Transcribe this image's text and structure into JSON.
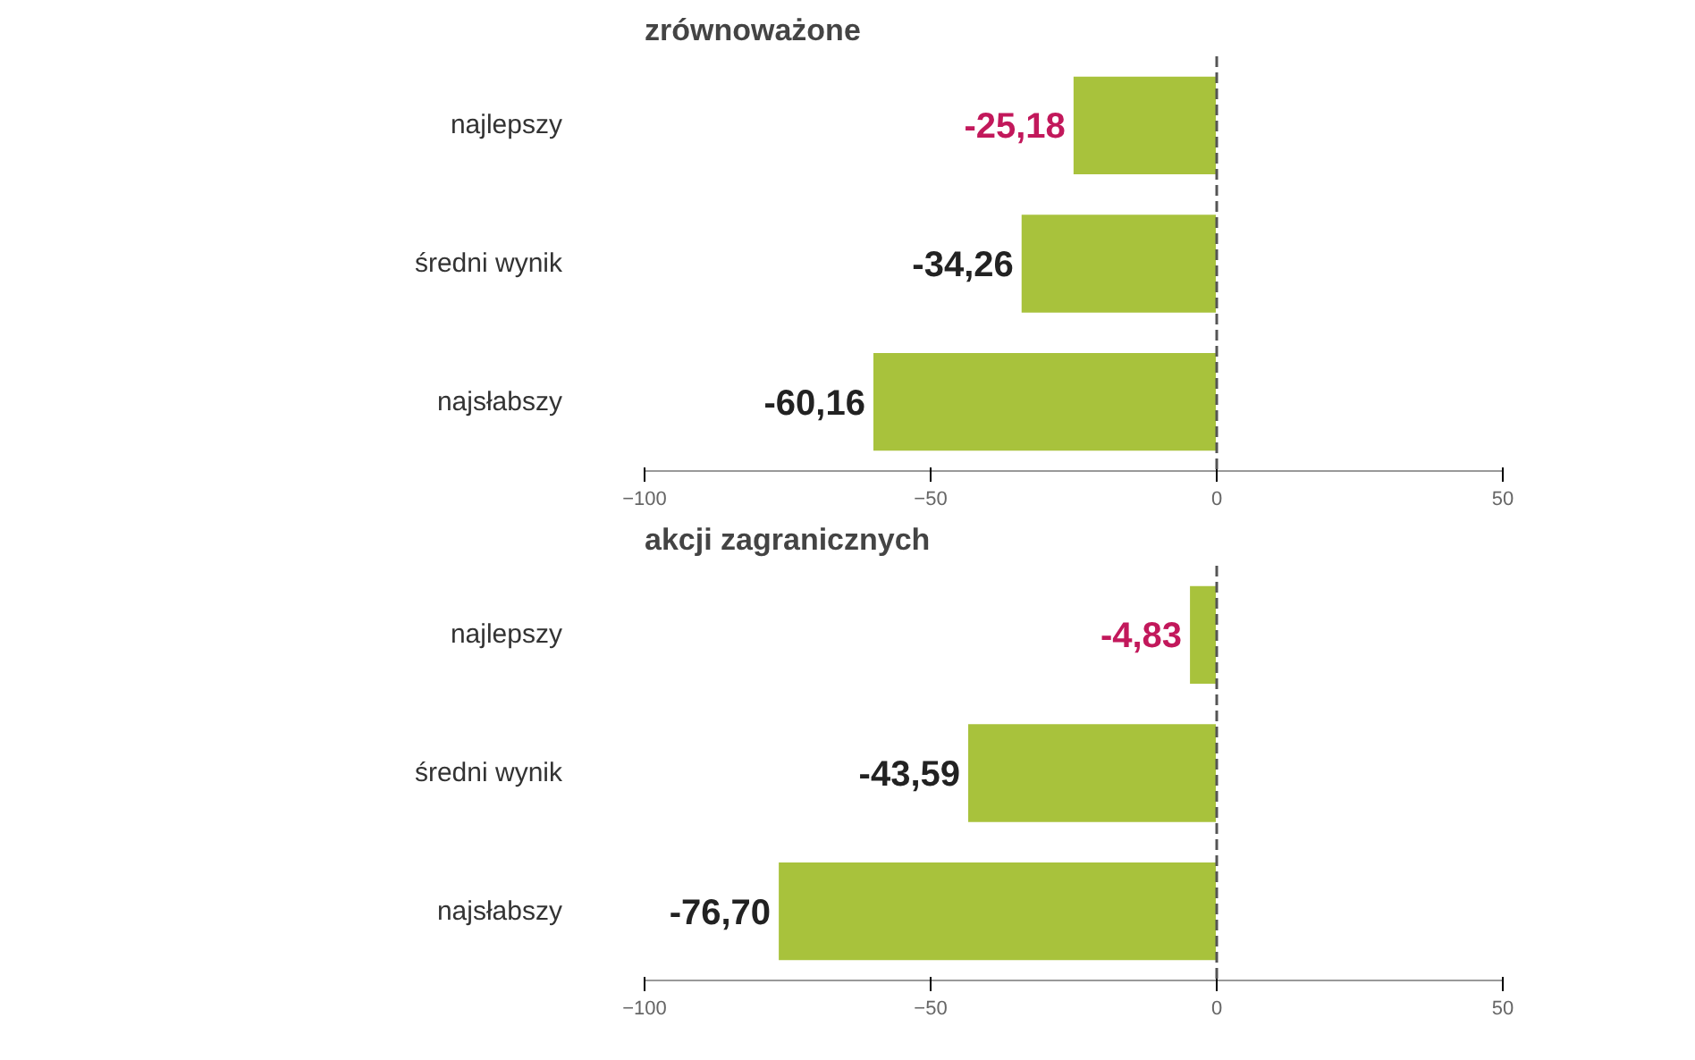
{
  "chart_data": [
    {
      "type": "bar",
      "orientation": "horizontal",
      "title": "zrównoważone",
      "categories": [
        "najlepszy",
        "średni wynik",
        "najsłabszy"
      ],
      "values": [
        -25.18,
        -34.26,
        -60.16
      ],
      "value_labels": [
        "-25,18",
        "-34,26",
        "-60,16"
      ],
      "color": "#a8c23c",
      "xlim": [
        -100,
        50
      ],
      "xticks": [
        -100,
        -50,
        0,
        50
      ],
      "ref_lines": [
        {
          "axis": "x",
          "value": 0,
          "line_style": "dashed",
          "color": "#555555"
        }
      ],
      "grid": false
    },
    {
      "type": "bar",
      "orientation": "horizontal",
      "title": "akcji zagranicznych",
      "categories": [
        "najlepszy",
        "średni wynik",
        "najsłabszy"
      ],
      "values": [
        -4.83,
        -43.59,
        -76.7
      ],
      "value_labels": [
        "-4,83",
        "-43,59",
        "-76,70"
      ],
      "color": "#a8c23c",
      "xlim": [
        -100,
        50
      ],
      "xticks": [
        -100,
        -50,
        0,
        50
      ],
      "ref_lines": [
        {
          "axis": "x",
          "value": 0,
          "line_style": "dashed",
          "color": "#555555"
        }
      ],
      "grid": false
    }
  ]
}
